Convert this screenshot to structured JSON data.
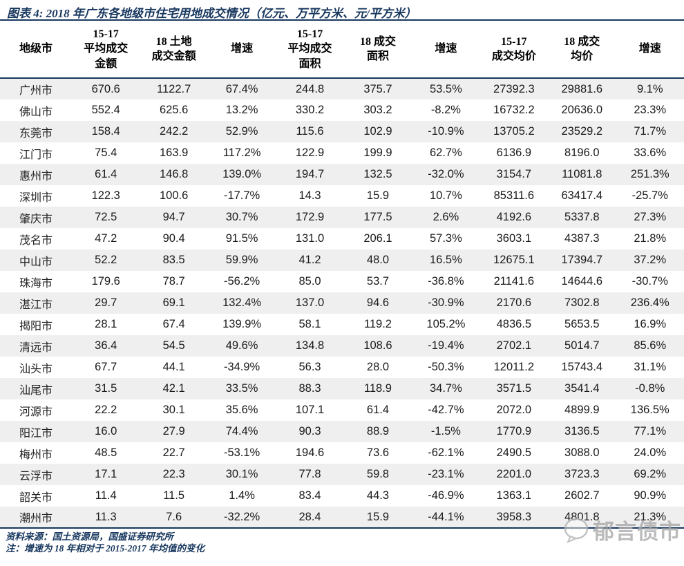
{
  "title": "图表 4:  2018 年广东各地级市住宅用地成交情况（亿元、万平方米、元/平方米）",
  "chart_data": {
    "type": "table",
    "title": "2018 年广东各地级市住宅用地成交情况",
    "units": "亿元、万平方米、元/平方米",
    "columns": [
      "地级市",
      "15-17\n平均成交\n金额",
      "18 土地\n成交金额",
      "增速",
      "15-17\n平均成交\n面积",
      "18 成交\n面积",
      "增速",
      "15-17\n成交均价",
      "18 成交\n均价",
      "增速"
    ],
    "rows": [
      [
        "广州市",
        "670.6",
        "1122.7",
        "67.4%",
        "244.8",
        "375.7",
        "53.5%",
        "27392.3",
        "29881.6",
        "9.1%"
      ],
      [
        "佛山市",
        "552.4",
        "625.6",
        "13.2%",
        "330.2",
        "303.2",
        "-8.2%",
        "16732.2",
        "20636.0",
        "23.3%"
      ],
      [
        "东莞市",
        "158.4",
        "242.2",
        "52.9%",
        "115.6",
        "102.9",
        "-10.9%",
        "13705.2",
        "23529.2",
        "71.7%"
      ],
      [
        "江门市",
        "75.4",
        "163.9",
        "117.2%",
        "122.9",
        "199.9",
        "62.7%",
        "6136.9",
        "8196.0",
        "33.6%"
      ],
      [
        "惠州市",
        "61.4",
        "146.8",
        "139.0%",
        "194.7",
        "132.5",
        "-32.0%",
        "3154.7",
        "11081.8",
        "251.3%"
      ],
      [
        "深圳市",
        "122.3",
        "100.6",
        "-17.7%",
        "14.3",
        "15.9",
        "10.7%",
        "85311.6",
        "63417.4",
        "-25.7%"
      ],
      [
        "肇庆市",
        "72.5",
        "94.7",
        "30.7%",
        "172.9",
        "177.5",
        "2.6%",
        "4192.6",
        "5337.8",
        "27.3%"
      ],
      [
        "茂名市",
        "47.2",
        "90.4",
        "91.5%",
        "131.0",
        "206.1",
        "57.3%",
        "3603.1",
        "4387.3",
        "21.8%"
      ],
      [
        "中山市",
        "52.2",
        "83.5",
        "59.9%",
        "41.2",
        "48.0",
        "16.5%",
        "12675.1",
        "17394.7",
        "37.2%"
      ],
      [
        "珠海市",
        "179.6",
        "78.7",
        "-56.2%",
        "85.0",
        "53.7",
        "-36.8%",
        "21141.6",
        "14644.6",
        "-30.7%"
      ],
      [
        "湛江市",
        "29.7",
        "69.1",
        "132.4%",
        "137.0",
        "94.6",
        "-30.9%",
        "2170.6",
        "7302.8",
        "236.4%"
      ],
      [
        "揭阳市",
        "28.1",
        "67.4",
        "139.9%",
        "58.1",
        "119.2",
        "105.2%",
        "4836.5",
        "5653.5",
        "16.9%"
      ],
      [
        "清远市",
        "36.4",
        "54.5",
        "49.6%",
        "134.8",
        "108.6",
        "-19.4%",
        "2702.1",
        "5014.7",
        "85.6%"
      ],
      [
        "汕头市",
        "67.7",
        "44.1",
        "-34.9%",
        "56.3",
        "28.0",
        "-50.3%",
        "12011.2",
        "15743.4",
        "31.1%"
      ],
      [
        "汕尾市",
        "31.5",
        "42.1",
        "33.5%",
        "88.3",
        "118.9",
        "34.7%",
        "3571.5",
        "3541.4",
        "-0.8%"
      ],
      [
        "河源市",
        "22.2",
        "30.1",
        "35.6%",
        "107.1",
        "61.4",
        "-42.7%",
        "2072.0",
        "4899.9",
        "136.5%"
      ],
      [
        "阳江市",
        "16.0",
        "27.9",
        "74.4%",
        "90.3",
        "88.9",
        "-1.5%",
        "1770.9",
        "3136.5",
        "77.1%"
      ],
      [
        "梅州市",
        "48.5",
        "22.7",
        "-53.1%",
        "194.6",
        "73.6",
        "-62.1%",
        "2490.5",
        "3088.0",
        "24.0%"
      ],
      [
        "云浮市",
        "17.1",
        "22.3",
        "30.1%",
        "77.8",
        "59.8",
        "-23.1%",
        "2201.0",
        "3723.3",
        "69.2%"
      ],
      [
        "韶关市",
        "11.4",
        "11.5",
        "1.4%",
        "83.4",
        "44.3",
        "-46.9%",
        "1363.1",
        "2602.7",
        "90.9%"
      ],
      [
        "潮州市",
        "11.3",
        "7.6",
        "-32.2%",
        "28.4",
        "15.9",
        "-44.1%",
        "3958.3",
        "4801.8",
        "21.3%"
      ]
    ]
  },
  "footer": {
    "source": "资料来源：国土资源局，国盛证券研究所",
    "note": "注：增速为 18 年相对于 2015-2017 年均值的变化"
  },
  "watermark": {
    "text": "郁言债市",
    "logo_icon": "speech-bubble-icon"
  },
  "colors": {
    "accent_navy": "#17375e",
    "rule_navy": "#16365c",
    "row_stripe": "#efefef",
    "data_text": "#1a1a1a",
    "watermark_gray": "#a9a9a9"
  }
}
